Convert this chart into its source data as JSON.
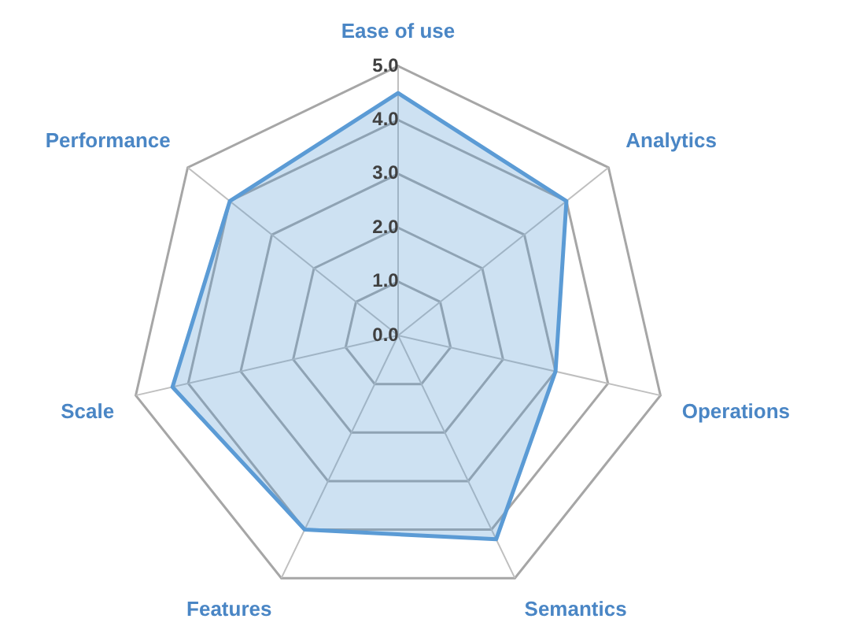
{
  "chart_data": {
    "type": "radar",
    "categories": [
      "Ease of use",
      "Analytics",
      "Operations",
      "Semantics",
      "Features",
      "Scale",
      "Performance"
    ],
    "series": [
      {
        "color": "#5b9bd5",
        "values": [
          4.5,
          4.0,
          3.0,
          4.2,
          4.0,
          4.3,
          4.0
        ]
      }
    ],
    "ylim": [
      0,
      5
    ],
    "yticks": [
      {
        "value": 0,
        "label": "0.0"
      },
      {
        "value": 1,
        "label": "1.0"
      },
      {
        "value": 2,
        "label": "2.0"
      },
      {
        "value": 3,
        "label": "3.0"
      },
      {
        "value": 4,
        "label": "4.0"
      },
      {
        "value": 5,
        "label": "5.0"
      }
    ],
    "grid": true,
    "legend": false
  }
}
